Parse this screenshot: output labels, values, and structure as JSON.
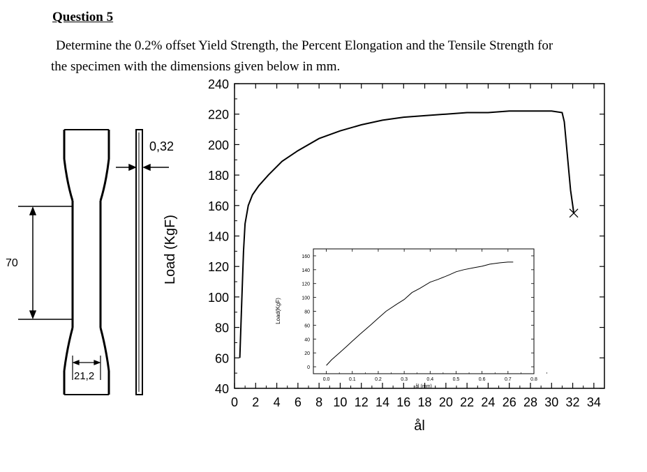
{
  "question": {
    "title": "Question 5",
    "line1": "Determine the 0.2% offset Yield Strength, the Percent Elongation and the Tensile Strength for",
    "line2": "the specimen with the dimensions given below in mm."
  },
  "specimen": {
    "length_label": "70",
    "width_label": "21,2",
    "thickness_label": "0,32"
  },
  "chart_data": [
    {
      "type": "line",
      "title": "",
      "xlabel": "ål",
      "ylabel": "Load (KgF)",
      "xlim": [
        0,
        35
      ],
      "ylim": [
        40,
        240
      ],
      "xticks": [
        "0",
        "2",
        "4",
        "6",
        "8",
        "10",
        "12",
        "14",
        "16",
        "18",
        "20",
        "22",
        "24",
        "26",
        "28",
        "30",
        "32",
        "34"
      ],
      "yticks": [
        "40",
        "60",
        "80",
        "100",
        "120",
        "140",
        "160",
        "180",
        "200",
        "220",
        "240"
      ],
      "grid": false,
      "series": [
        {
          "name": "",
          "x": [
            0.5,
            0.7,
            0.85,
            1.0,
            1.3,
            1.7,
            2.3,
            3.2,
            4.5,
            6,
            8,
            10,
            12,
            14,
            16,
            18,
            20,
            22,
            24,
            26,
            28,
            30,
            31,
            31.2,
            31.4,
            31.6,
            31.8,
            32.0,
            32.1
          ],
          "y": [
            60,
            100,
            130,
            148,
            160,
            167,
            173,
            180,
            189,
            196,
            204,
            209,
            213,
            216,
            218,
            219,
            220,
            221,
            221,
            222,
            222,
            222,
            221,
            215,
            200,
            185,
            170,
            160,
            155
          ]
        }
      ],
      "annotations": [
        "fracture-marker"
      ]
    },
    {
      "type": "line",
      "title": "",
      "xlabel": "ål (mm)",
      "ylabel": "Load(KgF)",
      "xlim": [
        -0.05,
        0.8
      ],
      "ylim": [
        -10,
        170
      ],
      "xticks": [
        "0.0",
        "0.1",
        "0.2",
        "0.3",
        "0.4",
        "0.5",
        "0.6",
        "0.7",
        "0.8"
      ],
      "yticks": [
        "0",
        "20",
        "40",
        "60",
        "80",
        "100",
        "120",
        "140",
        "160"
      ],
      "grid": false,
      "series": [
        {
          "name": "",
          "x": [
            0.0,
            0.02,
            0.05,
            0.08,
            0.1,
            0.13,
            0.17,
            0.2,
            0.23,
            0.27,
            0.3,
            0.33,
            0.36,
            0.4,
            0.43,
            0.47,
            0.5,
            0.53,
            0.57,
            0.6,
            0.63,
            0.67,
            0.7,
            0.72
          ],
          "y": [
            2,
            10,
            20,
            30,
            37,
            47,
            60,
            70,
            80,
            90,
            97,
            107,
            113,
            122,
            126,
            132,
            137,
            140,
            143,
            145,
            148,
            150,
            151,
            151
          ]
        }
      ]
    }
  ]
}
